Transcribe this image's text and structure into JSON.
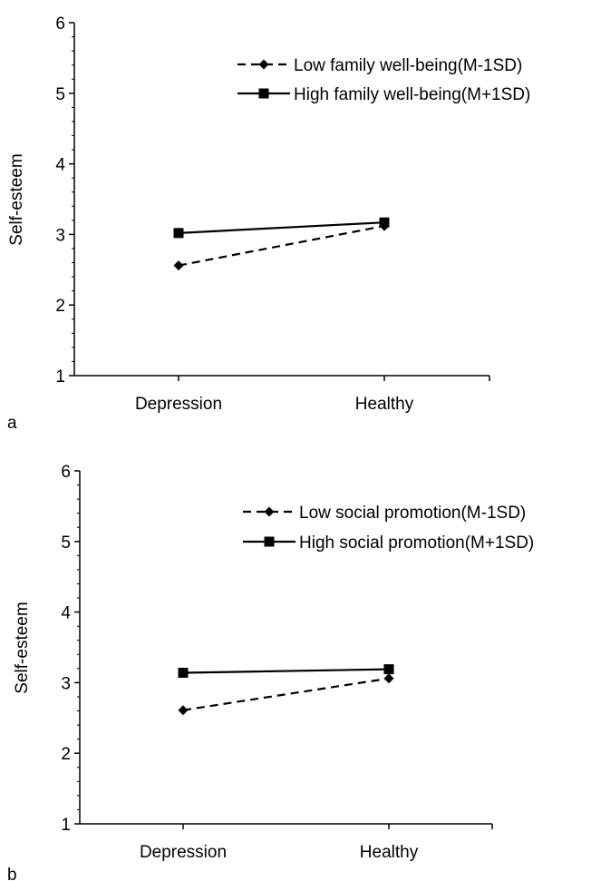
{
  "chart_data": [
    {
      "type": "line",
      "panel_label": "a",
      "categories": [
        "Depression",
        "Healthy"
      ],
      "ylabel": "Self-esteem",
      "ylim": [
        1,
        6
      ],
      "yticks": [
        "1",
        "2",
        "3",
        "4",
        "5",
        "6"
      ],
      "legend_position": "top-right",
      "series": [
        {
          "name": "Low family well-being(M-1SD)",
          "values": [
            2.56,
            3.12
          ],
          "style": "dashed",
          "marker": "diamond"
        },
        {
          "name": "High family well-being(M+1SD)",
          "values": [
            3.02,
            3.17
          ],
          "style": "solid",
          "marker": "square"
        }
      ]
    },
    {
      "type": "line",
      "panel_label": "b",
      "categories": [
        "Depression",
        "Healthy"
      ],
      "ylabel": "Self-esteem",
      "ylim": [
        1,
        6
      ],
      "yticks": [
        "1",
        "2",
        "3",
        "4",
        "5",
        "6"
      ],
      "legend_position": "top-right",
      "series": [
        {
          "name": "Low social promotion(M-1SD)",
          "values": [
            2.61,
            3.06
          ],
          "style": "dashed",
          "marker": "diamond"
        },
        {
          "name": "High social promotion(M+1SD)",
          "values": [
            3.14,
            3.19
          ],
          "style": "solid",
          "marker": "square"
        }
      ]
    }
  ]
}
